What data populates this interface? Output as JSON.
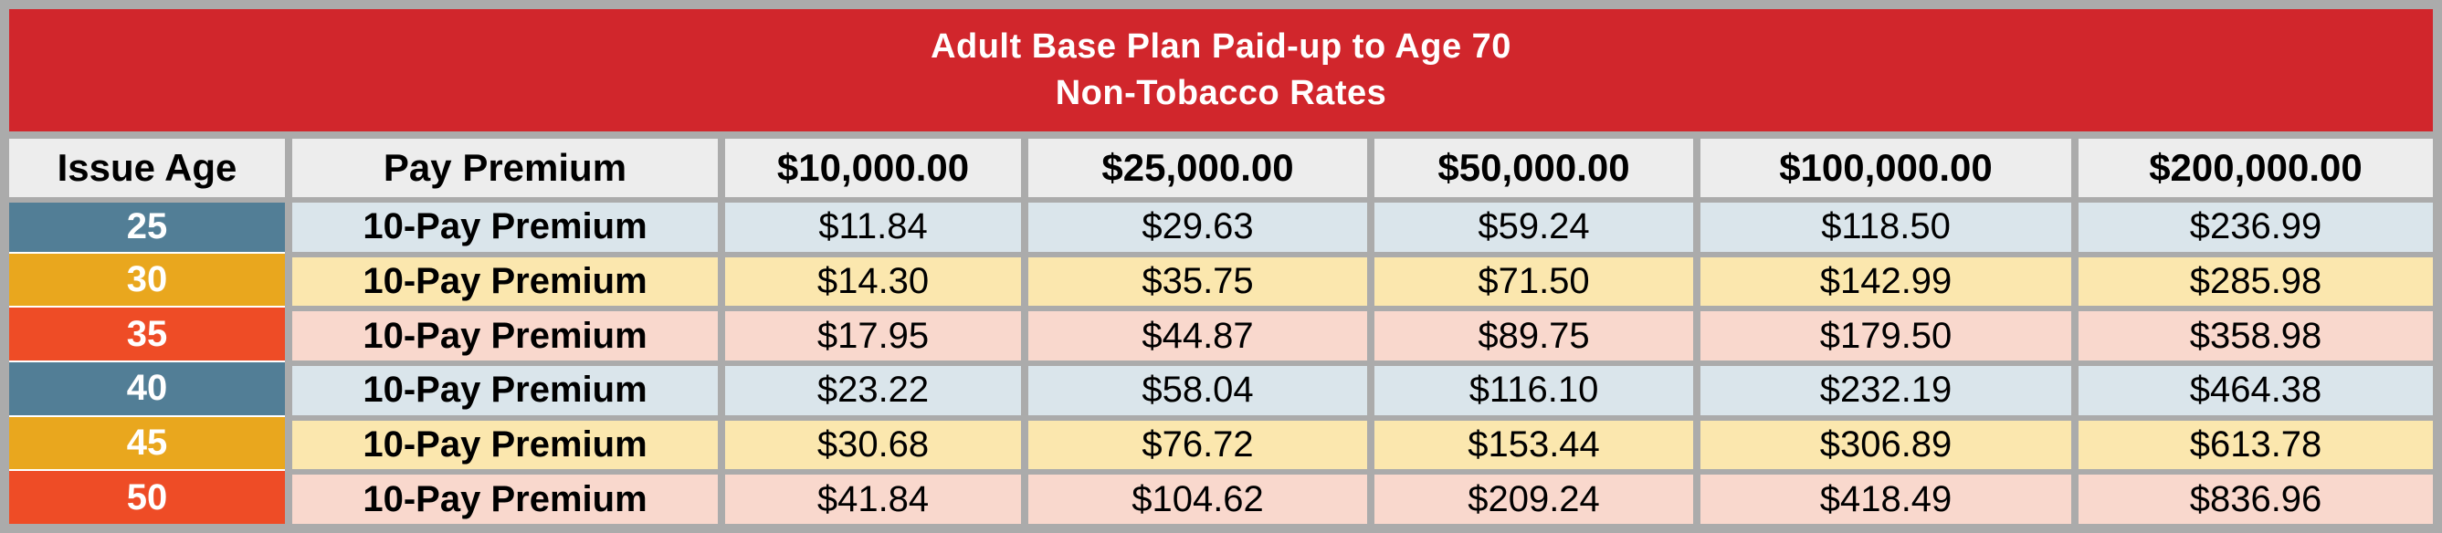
{
  "table": {
    "title_line1": "Adult Base Plan Paid-up to Age 70",
    "title_line2": "Non-Tobacco Rates",
    "columns": [
      "Issue Age",
      "Pay Premium",
      "$10,000.00",
      "$25,000.00",
      "$50,000.00",
      "$100,000.00",
      "$200,000.00"
    ],
    "rows": [
      {
        "issue_age": "25",
        "pay_premium": "10-Pay Premium",
        "rates": [
          "$11.84",
          "$29.63",
          "$59.24",
          "$118.50",
          "$236.99"
        ],
        "theme": "blue"
      },
      {
        "issue_age": "30",
        "pay_premium": "10-Pay Premium",
        "rates": [
          "$14.30",
          "$35.75",
          "$71.50",
          "$142.99",
          "$285.98"
        ],
        "theme": "gold"
      },
      {
        "issue_age": "35",
        "pay_premium": "10-Pay Premium",
        "rates": [
          "$17.95",
          "$44.87",
          "$89.75",
          "$179.50",
          "$358.98"
        ],
        "theme": "orange"
      },
      {
        "issue_age": "40",
        "pay_premium": "10-Pay Premium",
        "rates": [
          "$23.22",
          "$58.04",
          "$116.10",
          "$232.19",
          "$464.38"
        ],
        "theme": "blue"
      },
      {
        "issue_age": "45",
        "pay_premium": "10-Pay Premium",
        "rates": [
          "$30.68",
          "$76.72",
          "$153.44",
          "$306.89",
          "$613.78"
        ],
        "theme": "gold"
      },
      {
        "issue_age": "50",
        "pay_premium": "10-Pay Premium",
        "rates": [
          "$41.84",
          "$104.62",
          "$209.24",
          "$418.49",
          "$836.96"
        ],
        "theme": "orange"
      }
    ]
  },
  "colors": {
    "banner_red": "#D1262C",
    "border_gray": "#ABABAB",
    "header_cell_gray": "#EDEDED",
    "age_blue": "#527E96",
    "age_gold": "#E9A71E",
    "age_orange": "#EE4C26",
    "row_blue": "#DAE5EB",
    "row_yellow": "#FBE7AE",
    "row_pink": "#F9D8CD",
    "title_text": "#FFFFFF",
    "body_text": "#000000"
  }
}
